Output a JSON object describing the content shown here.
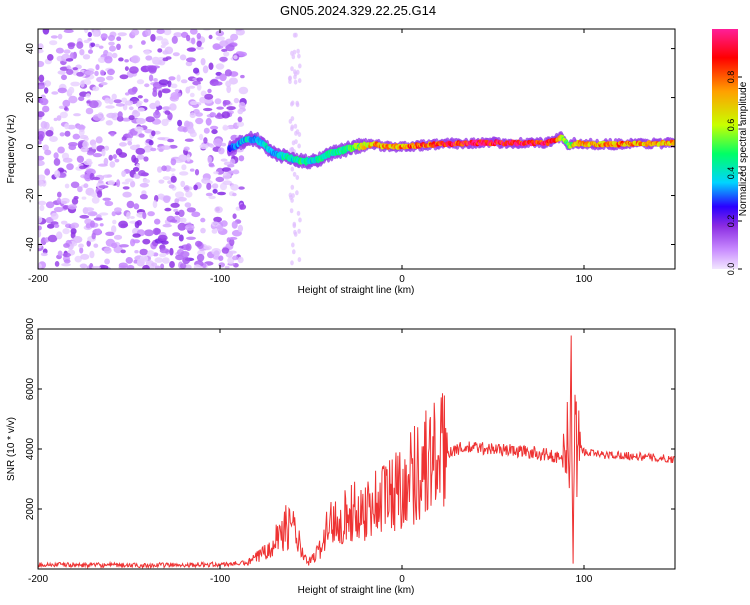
{
  "title": "GN05.2024.329.22.25.G14",
  "chart_data": [
    {
      "type": "heatmap",
      "xlabel": "Height of straight line (km)",
      "ylabel": "Frequency (Hz)",
      "xlim": [
        -200,
        150
      ],
      "ylim": [
        -50,
        48
      ],
      "xticks": [
        {
          "value": -200,
          "label": "-200"
        },
        {
          "value": -100,
          "label": "-100"
        },
        {
          "value": 0,
          "label": "0"
        },
        {
          "value": 100,
          "label": "100"
        }
      ],
      "yticks": [
        {
          "value": -40,
          "label": "-40"
        },
        {
          "value": -20,
          "label": "-20"
        },
        {
          "value": 0,
          "label": "0"
        },
        {
          "value": 20,
          "label": "20"
        },
        {
          "value": 40,
          "label": "40"
        }
      ],
      "colorbar": {
        "label": "Normalized spectral amplitude",
        "range": [
          0,
          1
        ],
        "ticks": [
          {
            "value": 0.0,
            "label": "0.0"
          },
          {
            "value": 0.2,
            "label": "0.2"
          },
          {
            "value": 0.4,
            "label": "0.4"
          },
          {
            "value": 0.6,
            "label": "0.6"
          },
          {
            "value": 0.8,
            "label": "0.8"
          }
        ],
        "colors": [
          "#f2e6ff",
          "#c98cff",
          "#8a2be2",
          "#2a00ff",
          "#00d4ff",
          "#00ff66",
          "#c8ff00",
          "#ffa000",
          "#ff0000",
          "#ff1f99"
        ]
      },
      "ridge": {
        "x": [
          -95,
          -90,
          -85,
          -80,
          -75,
          -70,
          -65,
          -60,
          -55,
          -50,
          -45,
          -40,
          -35,
          -30,
          -25,
          -20,
          -15,
          -10,
          -5,
          0,
          10,
          20,
          40,
          60,
          80,
          85,
          88,
          92,
          95,
          100,
          120,
          150
        ],
        "y": [
          -1,
          1,
          3,
          3,
          0,
          -3,
          -4,
          -5,
          -6,
          -6,
          -5,
          -3,
          -2,
          -1,
          0,
          0.5,
          1,
          0,
          0,
          0,
          0.5,
          1,
          1.5,
          1.5,
          1.5,
          3,
          4,
          0,
          1.5,
          1,
          1,
          1.5
        ],
        "amp": [
          0.35,
          0.45,
          0.5,
          0.45,
          0.5,
          0.45,
          0.55,
          0.5,
          0.6,
          0.5,
          0.55,
          0.6,
          0.55,
          0.6,
          0.65,
          0.75,
          0.8,
          0.85,
          0.8,
          0.85,
          0.9,
          0.95,
          0.98,
          0.98,
          0.98,
          0.9,
          0.7,
          0.6,
          0.85,
          0.8,
          0.85,
          0.8
        ]
      },
      "noise_region": [
        -200,
        -87
      ]
    },
    {
      "type": "line",
      "xlabel": "Height of straight line (km)",
      "ylabel": "SNR (10 * v/v)",
      "xlim": [
        -200,
        150
      ],
      "ylim": [
        0,
        8000
      ],
      "color": "#ee3333",
      "xticks": [
        {
          "value": -200,
          "label": "-200"
        },
        {
          "value": -100,
          "label": "-100"
        },
        {
          "value": 0,
          "label": "0"
        },
        {
          "value": 100,
          "label": "100"
        }
      ],
      "yticks": [
        {
          "value": 2000,
          "label": "2000"
        },
        {
          "value": 4000,
          "label": "4000"
        },
        {
          "value": 6000,
          "label": "6000"
        },
        {
          "value": 8000,
          "label": "8000"
        }
      ],
      "x": [
        -200,
        -150,
        -100,
        -85,
        -78,
        -70,
        -65,
        -62,
        -58,
        -55,
        -52,
        -48,
        -45,
        -42,
        -40,
        -37,
        -35,
        -30,
        -25,
        -20,
        -15,
        -10,
        -5,
        0,
        5,
        10,
        15,
        20,
        25,
        30,
        40,
        50,
        60,
        70,
        80,
        85,
        88,
        90,
        91,
        92,
        93,
        94,
        95,
        96,
        97,
        100,
        110,
        120,
        130,
        140,
        150
      ],
      "y": [
        150,
        120,
        150,
        200,
        450,
        1000,
        1300,
        1500,
        1200,
        500,
        200,
        400,
        700,
        1200,
        1500,
        1600,
        1700,
        1800,
        1900,
        2000,
        2200,
        2400,
        2600,
        2800,
        3100,
        3400,
        3600,
        3800,
        3900,
        4000,
        4050,
        4000,
        3950,
        3900,
        3800,
        3750,
        3600,
        3500,
        5500,
        2000,
        6500,
        200,
        8000,
        3000,
        4200,
        3900,
        3800,
        3800,
        3750,
        3700,
        3650
      ]
    }
  ]
}
